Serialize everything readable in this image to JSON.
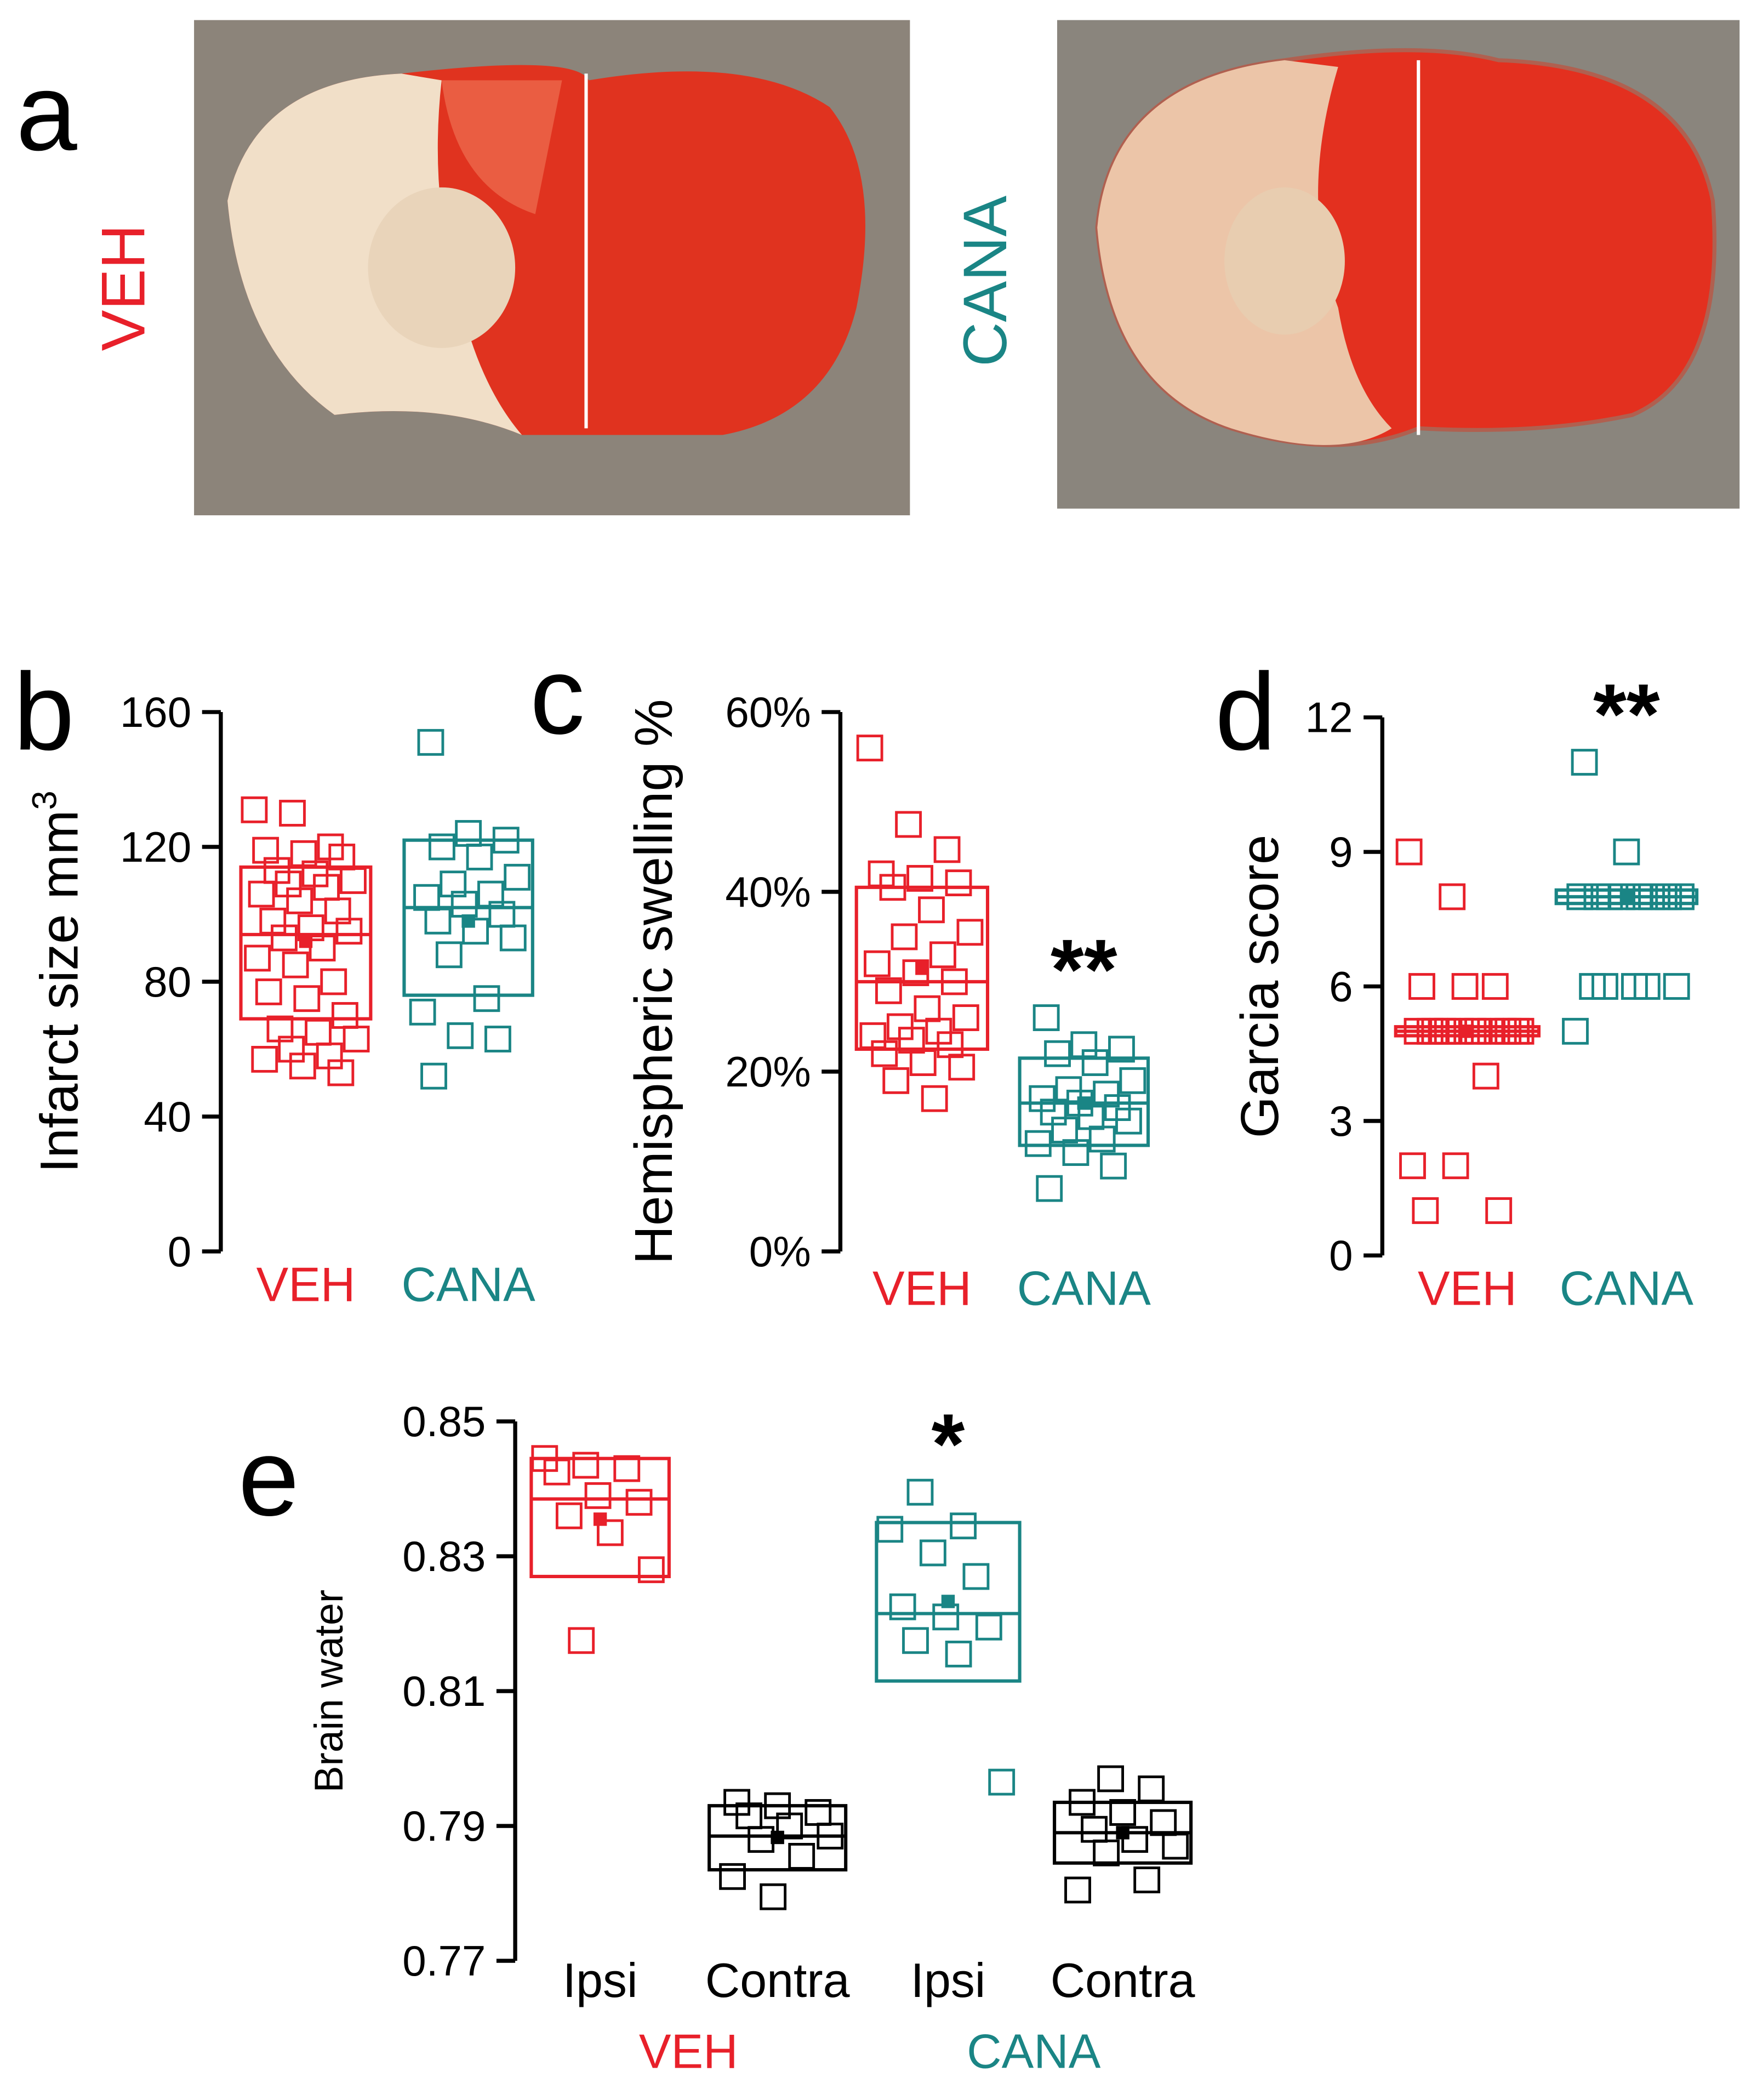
{
  "panel_a": {
    "label": "a",
    "images": [
      {
        "label": "VEH",
        "color": "#e8202a"
      },
      {
        "label": "CANA",
        "color": "#1a8585"
      }
    ]
  },
  "chart_data": [
    {
      "type": "box",
      "panel": "b",
      "ylabel": "Infarct size mm",
      "ylabel_sup": "3",
      "ylim": [
        0,
        160
      ],
      "yticks": [
        0,
        40,
        80,
        120,
        160
      ],
      "groups": [
        {
          "name": "VEH",
          "color": "#e8202a",
          "q1": 69,
          "median": 94,
          "q3": 114,
          "mean": 92,
          "points": [
            131,
            130,
            120,
            119,
            118,
            117,
            113,
            112,
            110,
            109,
            108,
            106,
            104,
            101,
            98,
            96,
            95,
            93,
            90,
            87,
            85,
            80,
            77,
            75,
            70,
            66,
            65,
            63,
            60,
            58,
            57,
            55,
            53
          ]
        },
        {
          "name": "CANA",
          "color": "#1a8585",
          "q1": 76,
          "median": 102,
          "q3": 122,
          "mean": 98,
          "points": [
            151,
            124,
            122,
            120,
            117,
            111,
            109,
            106,
            105,
            103,
            100,
            98,
            95,
            93,
            88,
            75,
            71,
            64,
            63,
            52
          ]
        }
      ]
    },
    {
      "type": "box",
      "panel": "c",
      "ylabel": "Hemispheric swelling %",
      "ylim": [
        0,
        60
      ],
      "yticks": [
        {
          "value": 0,
          "label": "0%"
        },
        {
          "value": 20,
          "label": "20%"
        },
        {
          "value": 40,
          "label": "40%"
        },
        {
          "value": 60,
          "label": "60%"
        }
      ],
      "groups": [
        {
          "name": "VEH",
          "color": "#e8202a",
          "q1": 22.5,
          "median": 30,
          "q3": 40.5,
          "mean": 31.5,
          "points": [
            56,
            47.5,
            44.7,
            42,
            41.5,
            41,
            40.5,
            38,
            35.5,
            35,
            33,
            32,
            31,
            30,
            29,
            27,
            26,
            25,
            24.5,
            24,
            23.5,
            23,
            22,
            21,
            20.5,
            19,
            17
          ]
        },
        {
          "name": "CANA",
          "color": "#1a8585",
          "q1": 11.8,
          "median": 16.5,
          "q3": 21.5,
          "mean": 16.5,
          "annotation": "**",
          "points": [
            26,
            23,
            22.5,
            22,
            21,
            19,
            18,
            17.5,
            17,
            16.5,
            16,
            15.5,
            15,
            14.5,
            13.5,
            12.5,
            12,
            11,
            9.5,
            7
          ]
        }
      ]
    },
    {
      "type": "box",
      "panel": "d",
      "ylabel": "Garcia score",
      "ylim": [
        0,
        12
      ],
      "yticks": [
        0,
        3,
        6,
        9,
        12
      ],
      "groups": [
        {
          "name": "VEH",
          "color": "#e8202a",
          "q1": 4.9,
          "median": 5,
          "q3": 5.1,
          "mean": 5,
          "points": [
            9,
            8,
            6,
            6,
            6,
            5,
            5,
            5,
            5,
            5,
            5,
            5,
            5,
            5,
            5,
            5,
            5,
            5,
            4,
            2,
            2,
            1,
            1
          ]
        },
        {
          "name": "CANA",
          "color": "#1a8585",
          "q1": 7.85,
          "median": 8,
          "q3": 8.15,
          "mean": 8,
          "annotation": "**",
          "points": [
            11,
            9,
            8,
            8,
            8,
            8,
            8,
            8,
            8,
            8,
            8,
            6,
            6,
            6,
            6,
            6,
            5
          ]
        }
      ]
    },
    {
      "type": "box",
      "panel": "e",
      "ylabel": "Brain water",
      "ylim": [
        0.77,
        0.85
      ],
      "yticks": [
        0.77,
        0.79,
        0.81,
        0.83,
        0.85
      ],
      "groups": [
        {
          "name": "Ipsi",
          "color": "#e8202a",
          "q1": 0.827,
          "median": 0.8385,
          "q3": 0.8445,
          "mean": 0.8355,
          "points": [
            0.8445,
            0.8435,
            0.843,
            0.8425,
            0.839,
            0.838,
            0.836,
            0.8335,
            0.828,
            0.8175
          ]
        },
        {
          "name": "Contra",
          "color": "#000000",
          "q1": 0.7835,
          "median": 0.7885,
          "q3": 0.793,
          "mean": 0.7883,
          "points": [
            0.7935,
            0.793,
            0.792,
            0.7915,
            0.79,
            0.7885,
            0.788,
            0.7855,
            0.7825,
            0.7795
          ]
        },
        {
          "name": "Ipsi",
          "color": "#1a8585",
          "q1": 0.8115,
          "median": 0.8215,
          "q3": 0.835,
          "mean": 0.8233,
          "annotation": "*",
          "points": [
            0.8395,
            0.8345,
            0.834,
            0.8305,
            0.827,
            0.8225,
            0.821,
            0.8195,
            0.8175,
            0.8155,
            0.7965
          ]
        },
        {
          "name": "Contra",
          "color": "#000000",
          "q1": 0.7845,
          "median": 0.789,
          "q3": 0.7935,
          "mean": 0.789,
          "points": [
            0.797,
            0.7955,
            0.7935,
            0.792,
            0.7905,
            0.7895,
            0.788,
            0.787,
            0.786,
            0.782,
            0.7805
          ]
        }
      ],
      "super_groups": [
        {
          "name": "VEH",
          "color": "#e8202a"
        },
        {
          "name": "CANA",
          "color": "#1a8585"
        }
      ]
    }
  ]
}
